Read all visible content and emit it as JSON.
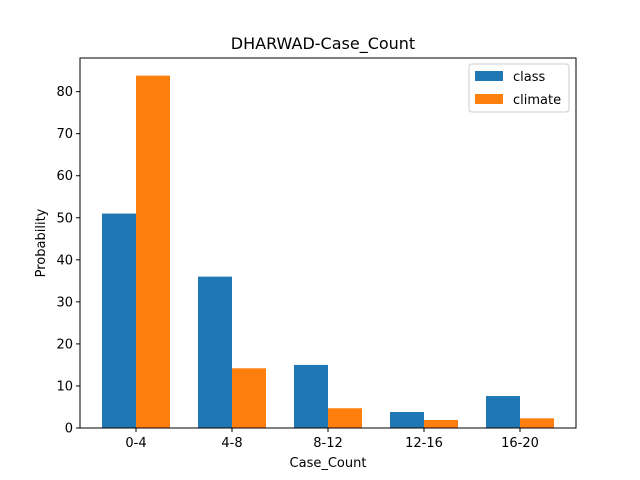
{
  "chart_data": {
    "type": "bar",
    "title": "DHARWAD-Case_Count",
    "xlabel": "Case_Count",
    "ylabel": "Probability",
    "categories": [
      "0-4",
      "4-8",
      "8-12",
      "12-16",
      "16-20"
    ],
    "series": [
      {
        "name": "class",
        "color": "#1f77b4",
        "values": [
          51.0,
          36.0,
          15.0,
          3.8,
          7.6
        ]
      },
      {
        "name": "climate",
        "color": "#ff7f0e",
        "values": [
          83.8,
          14.2,
          4.7,
          1.9,
          2.3
        ]
      }
    ],
    "ylim": [
      0,
      88
    ],
    "yticks": [
      0,
      10,
      20,
      30,
      40,
      50,
      60,
      70,
      80
    ],
    "grid": false,
    "legend_position": "top-right"
  }
}
